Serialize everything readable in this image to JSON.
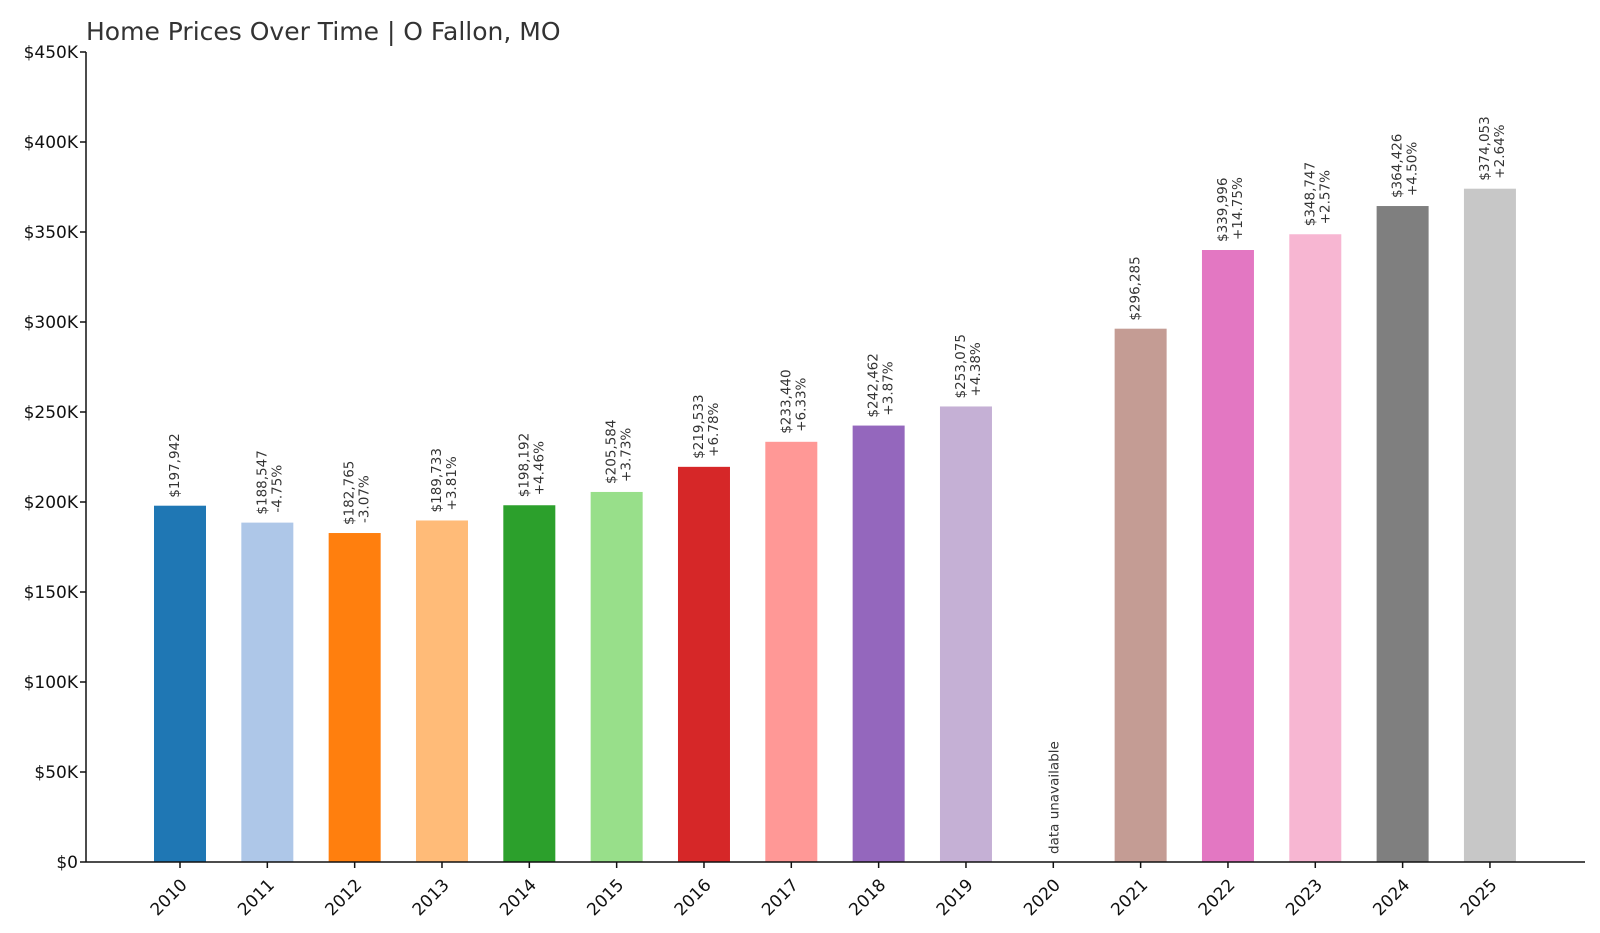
{
  "chart_data": {
    "type": "bar",
    "title": "Home Prices Over Time | O Fallon, MO",
    "xlabel": "",
    "ylabel": "",
    "ylim": [
      0,
      450000
    ],
    "grid": false,
    "legend": "none",
    "y_ticks": [
      {
        "value": 0,
        "label": "$0"
      },
      {
        "value": 50000,
        "label": "$50K"
      },
      {
        "value": 100000,
        "label": "$100K"
      },
      {
        "value": 150000,
        "label": "$150K"
      },
      {
        "value": 200000,
        "label": "$200K"
      },
      {
        "value": 250000,
        "label": "$250K"
      },
      {
        "value": 300000,
        "label": "$300K"
      },
      {
        "value": 350000,
        "label": "$350K"
      },
      {
        "value": 400000,
        "label": "$400K"
      },
      {
        "value": 450000,
        "label": "$450K"
      }
    ],
    "categories": [
      "2010",
      "2011",
      "2012",
      "2013",
      "2014",
      "2015",
      "2016",
      "2017",
      "2018",
      "2019",
      "2020",
      "2021",
      "2022",
      "2023",
      "2024",
      "2025"
    ],
    "values": [
      197942,
      188547,
      182765,
      189733,
      198192,
      205584,
      219533,
      233440,
      242462,
      253075,
      null,
      296285,
      339996,
      348747,
      364426,
      374053
    ],
    "value_labels": [
      "$197,942",
      "$188,547",
      "$182,765",
      "$189,733",
      "$198,192",
      "$205,584",
      "$219,533",
      "$233,440",
      "$242,462",
      "$253,075",
      "",
      "$296,285",
      "$339,996",
      "$348,747",
      "$364,426",
      "$374,053"
    ],
    "change_labels": [
      "",
      "-4.75%",
      "-3.07%",
      "+3.81%",
      "+4.46%",
      "+3.73%",
      "+6.78%",
      "+6.33%",
      "+3.87%",
      "+4.38%",
      "",
      "",
      "+14.75%",
      "+2.57%",
      "+4.50%",
      "+2.64%"
    ],
    "missing_label": "data unavailable",
    "colors": [
      "#1f77b4",
      "#aec7e8",
      "#ff7f0e",
      "#ffbb78",
      "#2ca02c",
      "#98df8a",
      "#d62728",
      "#ff9896",
      "#9467bd",
      "#c5b0d5",
      "#8c564b",
      "#c49c94",
      "#e377c2",
      "#f7b6d2",
      "#7f7f7f",
      "#c7c7c7"
    ]
  }
}
